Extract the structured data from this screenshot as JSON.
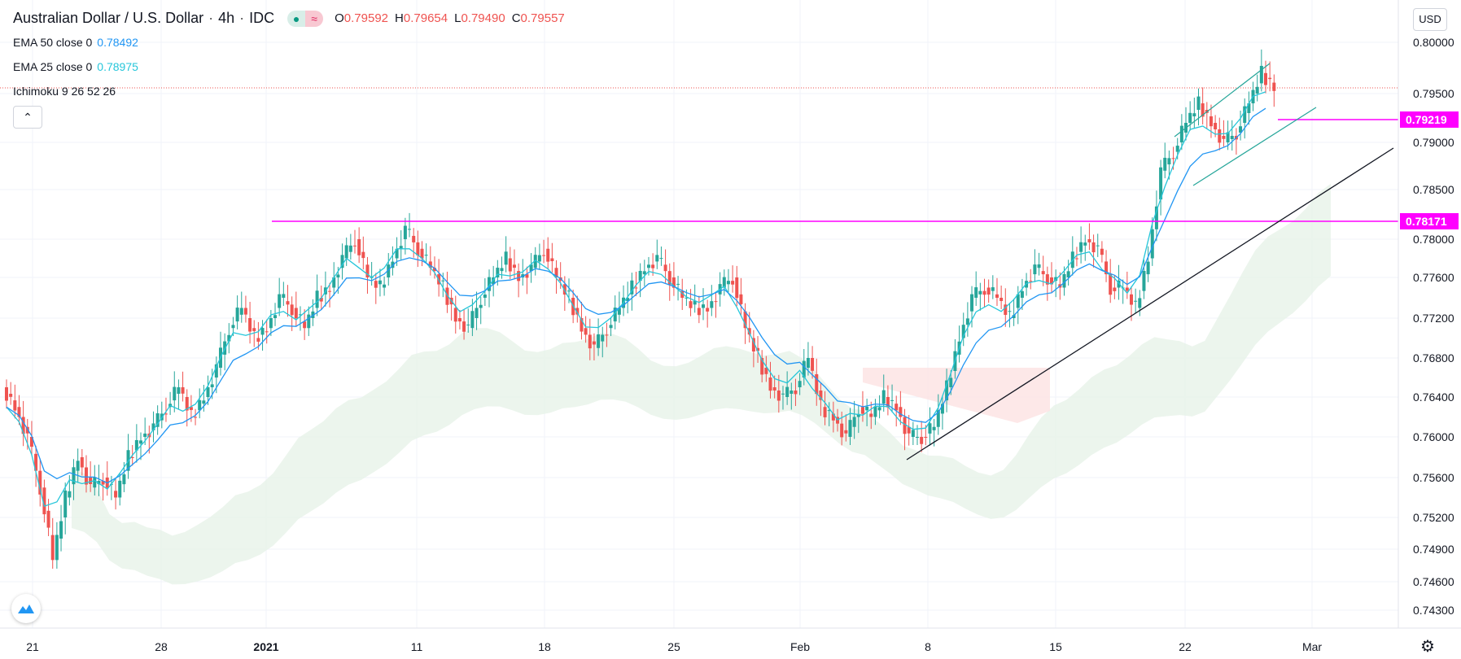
{
  "header": {
    "symbol": "Australian Dollar / U.S. Dollar",
    "interval": "4h",
    "exchange": "IDC",
    "sep": "·",
    "ohlc": {
      "o_label": "O",
      "o": "0.79592",
      "h_label": "H",
      "h": "0.79654",
      "l_label": "L",
      "l": "0.79490",
      "c_label": "C",
      "c": "0.79557"
    }
  },
  "indicators": [
    {
      "label": "EMA 50 close 0",
      "value": "0.78492",
      "color": "#2196f3"
    },
    {
      "label": "EMA 25 close 0",
      "value": "0.78975",
      "color": "#26c6da"
    },
    {
      "label": "Ichimoku 9 26 52 26",
      "value": "",
      "color": "#131722"
    }
  ],
  "currency_button": "USD",
  "collapse_icon": "chevron-up-icon",
  "colors": {
    "up": "#26a69a",
    "down": "#ef5350",
    "ema25": "#26c6da",
    "ema50": "#2196f3",
    "level": "#ff00ff",
    "cloud_up": "#e7f3e9",
    "cloud_down": "#fde2e2"
  },
  "chart_data": {
    "type": "candlestick",
    "title": "Australian Dollar / U.S. Dollar",
    "ylim": [
      0.741,
      0.8015
    ],
    "y_ticks": [
      "0.80000",
      "0.79500",
      "0.79000",
      "0.78500",
      "0.78000",
      "0.77600",
      "0.77200",
      "0.76800",
      "0.76400",
      "0.76000",
      "0.75600",
      "0.75200",
      "0.74900",
      "0.74600",
      "0.74300"
    ],
    "x_ticks": [
      "21",
      "28",
      "2021",
      "11",
      "18",
      "25",
      "Feb",
      "8",
      "15",
      "22",
      "Mar"
    ],
    "price_labels": [
      "0.79219",
      "0.78171"
    ],
    "series_close": [
      0.763,
      0.76,
      0.755,
      0.748,
      0.754,
      0.758,
      0.755,
      0.756,
      0.754,
      0.758,
      0.76,
      0.761,
      0.763,
      0.765,
      0.762,
      0.764,
      0.767,
      0.771,
      0.773,
      0.77,
      0.771,
      0.774,
      0.773,
      0.771,
      0.774,
      0.775,
      0.778,
      0.78,
      0.776,
      0.775,
      0.778,
      0.781,
      0.779,
      0.777,
      0.775,
      0.772,
      0.771,
      0.774,
      0.776,
      0.778,
      0.776,
      0.777,
      0.779,
      0.776,
      0.774,
      0.771,
      0.769,
      0.771,
      0.773,
      0.775,
      0.777,
      0.778,
      0.776,
      0.774,
      0.773,
      0.773,
      0.775,
      0.776,
      0.771,
      0.768,
      0.765,
      0.764,
      0.765,
      0.768,
      0.763,
      0.762,
      0.76,
      0.763,
      0.762,
      0.764,
      0.763,
      0.76,
      0.76,
      0.761,
      0.765,
      0.77,
      0.774,
      0.775,
      0.774,
      0.772,
      0.775,
      0.777,
      0.776,
      0.775,
      0.778,
      0.78,
      0.779,
      0.775,
      0.775,
      0.773,
      0.778,
      0.787,
      0.789,
      0.792,
      0.794,
      0.792,
      0.79,
      0.791,
      0.794,
      0.797,
      0.7956
    ]
  }
}
